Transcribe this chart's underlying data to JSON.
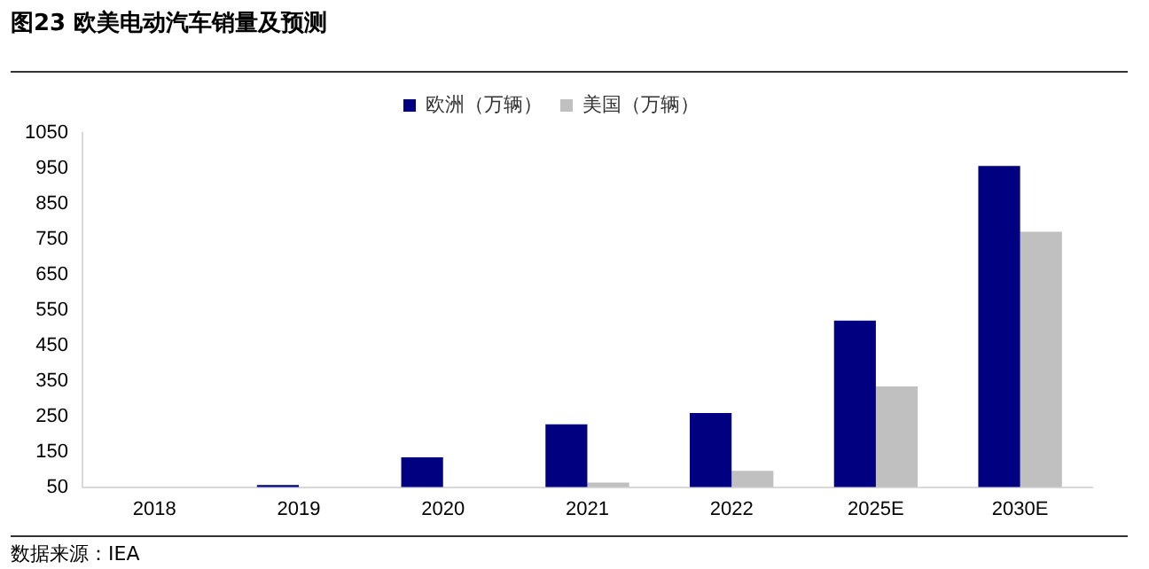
{
  "chart_data": {
    "type": "bar",
    "title": "图23 欧美电动汽车销量及预测",
    "categories": [
      "2018",
      "2019",
      "2020",
      "2021",
      "2022",
      "2025E",
      "2030E"
    ],
    "series": [
      {
        "name": "欧洲（万辆）",
        "color": "#000080",
        "values": [
          null,
          56,
          134,
          227,
          259,
          520,
          957
        ]
      },
      {
        "name": "美国（万辆）",
        "color": "#c0c0c0",
        "values": [
          null,
          null,
          null,
          63,
          96,
          334,
          771
        ]
      }
    ],
    "ylim": [
      50,
      1050
    ],
    "yticks": [
      50,
      150,
      250,
      350,
      450,
      550,
      650,
      750,
      850,
      950,
      1050
    ],
    "grid": false,
    "legend": "top",
    "annotations": [
      "数据来源：IEA"
    ]
  }
}
